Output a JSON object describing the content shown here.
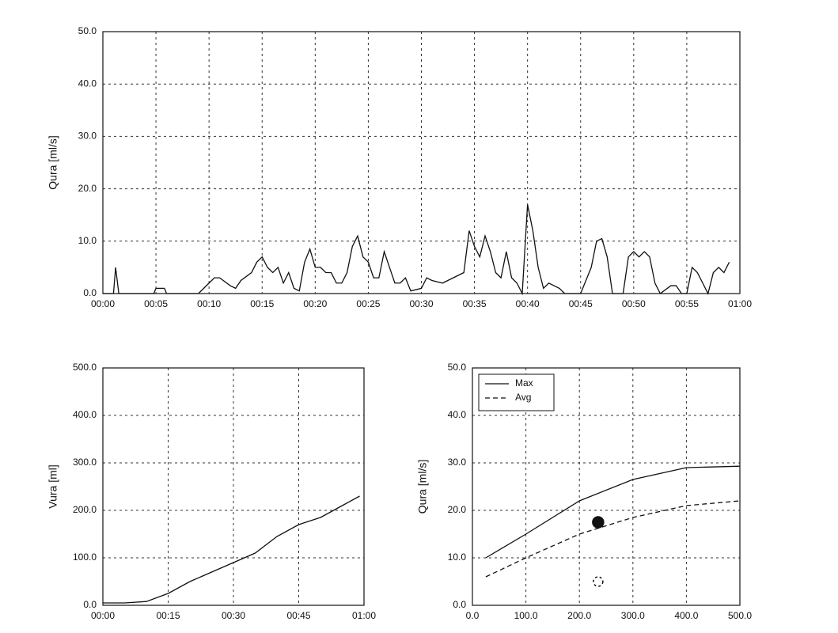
{
  "chart_data": [
    {
      "type": "line",
      "ylabel": "Qura [ml/s]",
      "color": "#111",
      "grid": true,
      "x": [
        0,
        1.0,
        1.2,
        1.5,
        4.8,
        5,
        5.8,
        6,
        9,
        10,
        10.5,
        11,
        12,
        12.5,
        13,
        14,
        14.5,
        15,
        15.5,
        16,
        16.5,
        17,
        17.5,
        18,
        18.5,
        19,
        19.5,
        20,
        20.5,
        21,
        21.5,
        22,
        22.5,
        23,
        23.5,
        24,
        24.5,
        25,
        25.5,
        26,
        26.5,
        27,
        27.5,
        28,
        28.5,
        29,
        30,
        30.5,
        31,
        32,
        33,
        34,
        34.5,
        35,
        35.5,
        36,
        36.5,
        37,
        37.5,
        38,
        38.5,
        39,
        39.5,
        40,
        40.5,
        41,
        41.5,
        42,
        43,
        43.5,
        45,
        46,
        46.5,
        47,
        47.5,
        48,
        49,
        49.5,
        50,
        50.5,
        51,
        51.5,
        52,
        52.5,
        53.5,
        54,
        54.5,
        55,
        55.5,
        56,
        56.5,
        57,
        57.5,
        58,
        58.5,
        59
      ],
      "values": [
        0,
        0,
        5,
        0,
        0,
        1,
        1,
        0,
        0,
        2,
        3,
        3,
        1.5,
        1,
        2.5,
        4,
        6,
        7,
        5,
        4,
        5,
        2,
        4,
        1,
        0.5,
        6,
        8.5,
        5,
        5,
        4,
        4,
        2,
        2,
        4,
        9,
        11,
        7,
        6,
        3,
        3,
        8,
        5,
        2,
        2,
        3,
        0.5,
        1,
        3,
        2.5,
        2,
        3,
        4,
        12,
        9,
        7,
        11,
        8,
        4,
        3,
        8,
        3,
        2,
        0,
        17,
        12,
        5,
        1,
        2,
        1,
        0,
        0,
        5,
        10,
        10.5,
        7,
        0,
        0,
        7,
        8,
        7,
        8,
        7,
        2,
        0,
        1.5,
        1.5,
        0,
        0,
        5,
        4,
        2,
        0,
        4,
        5,
        4,
        6
      ],
      "xlim": [
        0,
        60
      ],
      "ylim": [
        0,
        50
      ],
      "xticks": [
        {
          "value": 0,
          "label": "00:00"
        },
        {
          "value": 5,
          "label": "00:05"
        },
        {
          "value": 10,
          "label": "00:10"
        },
        {
          "value": 15,
          "label": "00:15"
        },
        {
          "value": 20,
          "label": "00:20"
        },
        {
          "value": 25,
          "label": "00:25"
        },
        {
          "value": 30,
          "label": "00:30"
        },
        {
          "value": 35,
          "label": "00:35"
        },
        {
          "value": 40,
          "label": "00:40"
        },
        {
          "value": 45,
          "label": "00:45"
        },
        {
          "value": 50,
          "label": "00:50"
        },
        {
          "value": 55,
          "label": "00:55"
        },
        {
          "value": 60,
          "label": "01:00"
        }
      ],
      "yticks": [
        {
          "value": 0,
          "label": "0.0"
        },
        {
          "value": 10,
          "label": "10.0"
        },
        {
          "value": 20,
          "label": "20.0"
        },
        {
          "value": 30,
          "label": "30.0"
        },
        {
          "value": 40,
          "label": "40.0"
        },
        {
          "value": 50,
          "label": "50.0"
        }
      ]
    },
    {
      "type": "line",
      "ylabel": "Vura [ml]",
      "color": "#111",
      "grid": true,
      "x": [
        0,
        5,
        10,
        15,
        20,
        25,
        30,
        35,
        40,
        45,
        50,
        55,
        59
      ],
      "values": [
        5,
        5,
        8,
        25,
        50,
        70,
        90,
        110,
        145,
        170,
        185,
        210,
        230
      ],
      "xlim": [
        0,
        60
      ],
      "ylim": [
        0,
        500
      ],
      "xticks": [
        {
          "value": 0,
          "label": "00:00"
        },
        {
          "value": 15,
          "label": "00:15"
        },
        {
          "value": 30,
          "label": "00:30"
        },
        {
          "value": 45,
          "label": "00:45"
        },
        {
          "value": 60,
          "label": "01:00"
        }
      ],
      "yticks": [
        {
          "value": 0,
          "label": "0.0"
        },
        {
          "value": 100,
          "label": "100.0"
        },
        {
          "value": 200,
          "label": "200.0"
        },
        {
          "value": 300,
          "label": "300.0"
        },
        {
          "value": 400,
          "label": "400.0"
        },
        {
          "value": 500,
          "label": "500.0"
        }
      ]
    },
    {
      "type": "line",
      "ylabel": "Qura [ml/s]",
      "grid": true,
      "legend": "upper left",
      "x": [
        25,
        100,
        200,
        300,
        400,
        500
      ],
      "series": [
        {
          "name": "Max",
          "color": "#111",
          "dash": false,
          "values": [
            10,
            15,
            22,
            26.5,
            29,
            29.3
          ]
        },
        {
          "name": "Avg",
          "color": "#111",
          "dash": true,
          "values": [
            6,
            10,
            15,
            18.5,
            21,
            22
          ]
        }
      ],
      "points": {
        "x": [
          235,
          235
        ],
        "y": [
          17.5,
          5
        ],
        "styles": [
          "filled",
          "dashed"
        ]
      },
      "xlim": [
        0,
        500
      ],
      "ylim": [
        0,
        50
      ],
      "xticks": [
        {
          "value": 0,
          "label": "0.0"
        },
        {
          "value": 100,
          "label": "100.0"
        },
        {
          "value": 200,
          "label": "200.0"
        },
        {
          "value": 300,
          "label": "300.0"
        },
        {
          "value": 400,
          "label": "400.0"
        },
        {
          "value": 500,
          "label": "500.0"
        }
      ],
      "yticks": [
        {
          "value": 0,
          "label": "0.0"
        },
        {
          "value": 10,
          "label": "10.0"
        },
        {
          "value": 20,
          "label": "20.0"
        },
        {
          "value": 30,
          "label": "30.0"
        },
        {
          "value": 40,
          "label": "40.0"
        },
        {
          "value": 50,
          "label": "50.0"
        }
      ]
    }
  ]
}
